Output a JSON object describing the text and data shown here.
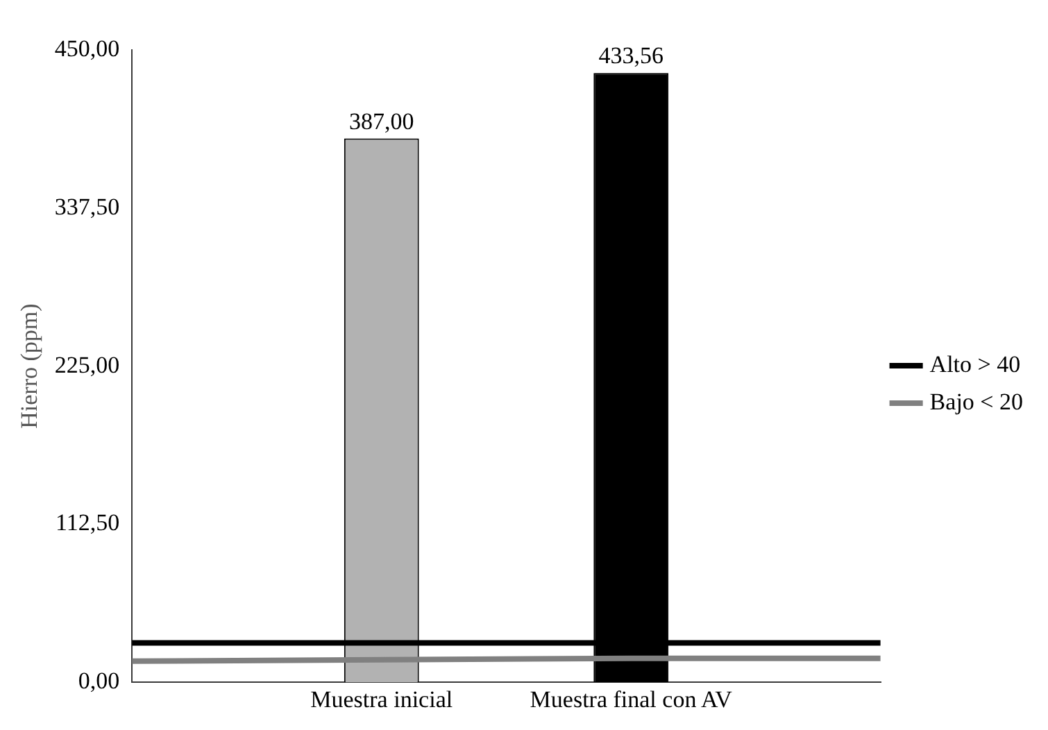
{
  "chart_data": {
    "type": "bar",
    "ylabel": "Hierro (ppm)",
    "categories": [
      null,
      "Muestra inicial",
      "Muestra final con AV",
      null
    ],
    "series": [
      {
        "colors": [
          "#ffffff",
          "#b2b2b2",
          "#000000",
          "#ffffff"
        ],
        "values": [
          null,
          387,
          433.56,
          null
        ],
        "value_labels": [
          null,
          "387,00",
          "433,56",
          null
        ]
      },
      {
        "type": "line",
        "name": "Alto > 40",
        "color": "#000000",
        "values": [
          28,
          28,
          28,
          28
        ]
      },
      {
        "type": "line",
        "name": "Bajo < 20",
        "color": "#808080",
        "values": [
          15,
          16,
          17,
          17
        ]
      }
    ],
    "ylim": [
      0,
      450
    ],
    "yticks": [
      {
        "value": 0,
        "label": "0,00"
      },
      {
        "value": 112.5,
        "label": "112,50"
      },
      {
        "value": 225,
        "label": "225,00"
      },
      {
        "value": 337.5,
        "label": "337,50"
      },
      {
        "value": 450,
        "label": "450,00"
      }
    ],
    "grid": false,
    "legend": "right",
    "marker": "none"
  }
}
